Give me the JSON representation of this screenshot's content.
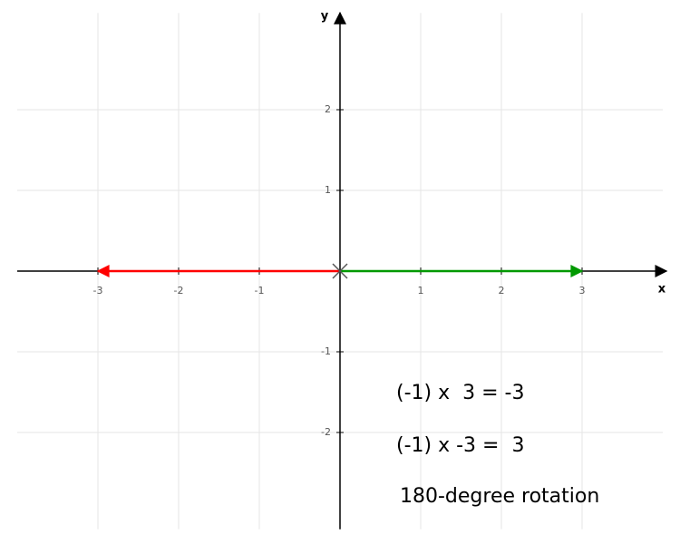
{
  "chart_data": {
    "type": "vector",
    "x_label": "x",
    "y_label": "y",
    "xlim": [
      -4,
      4
    ],
    "ylim": [
      -3.2,
      3.2
    ],
    "xticks": [
      -3,
      -2,
      -1,
      1,
      2,
      3
    ],
    "yticks": [
      -2,
      -1,
      1,
      2
    ],
    "grid": true,
    "series": [
      {
        "color": "#009900",
        "x": [
          0,
          3
        ],
        "values": [
          0,
          0
        ]
      },
      {
        "color": "#ff0000",
        "x": [
          0,
          -3
        ],
        "values": [
          0,
          0
        ]
      }
    ],
    "annotations": [
      "(-1) x  3 = -3",
      "(-1) x -3 =  3",
      "180-degree rotation"
    ]
  }
}
